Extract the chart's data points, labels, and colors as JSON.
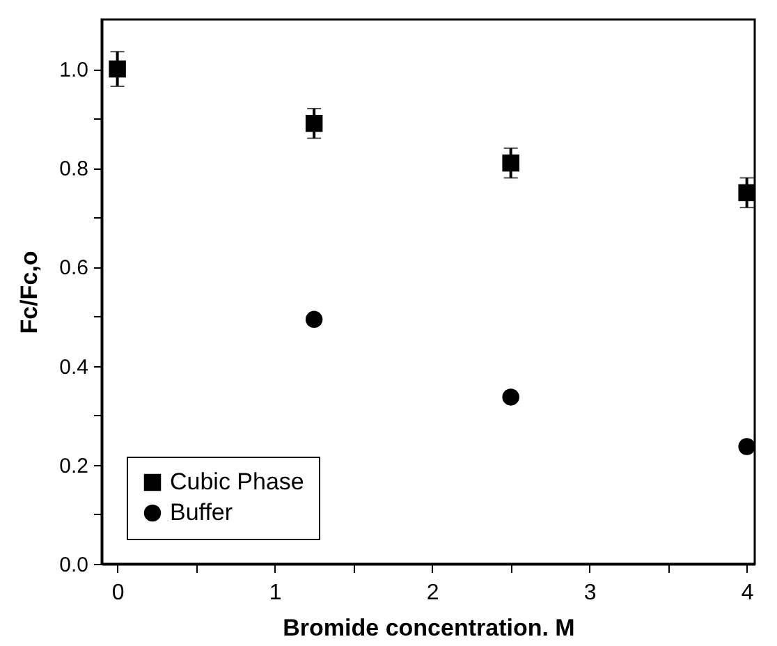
{
  "chart_data": {
    "type": "scatter",
    "xlabel": "Bromide concentration. M",
    "ylabel": "Fc/Fc,o",
    "x": [
      0,
      1.25,
      2.5,
      4
    ],
    "series": [
      {
        "name": "Cubic Phase",
        "color": "#000000",
        "marker": "square",
        "values": [
          1.0,
          0.89,
          0.81,
          0.75
        ],
        "errors": [
          0.035,
          0.03,
          0.03,
          0.03
        ]
      },
      {
        "name": "Buffer",
        "color": "#000000",
        "marker": "circle",
        "values": [
          null,
          0.494,
          0.337,
          0.237
        ]
      }
    ],
    "xlim": [
      -0.1,
      4.05
    ],
    "xticks": [
      0,
      {
        "value": 0.5,
        "label": null
      },
      1,
      {
        "value": 1.5,
        "label": null
      },
      2,
      {
        "value": 2.5,
        "label": null
      },
      3,
      {
        "value": 3.5,
        "label": null
      },
      4
    ],
    "ylim": [
      0,
      1.1
    ],
    "yticks": [
      {
        "value": 0,
        "label": "0.0"
      },
      {
        "value": 0.1,
        "label": null
      },
      {
        "value": 0.2,
        "label": "0.2"
      },
      {
        "value": 0.3,
        "label": null
      },
      {
        "value": 0.4,
        "label": "0.4"
      },
      {
        "value": 0.5,
        "label": null
      },
      {
        "value": 0.6,
        "label": "0.6"
      },
      {
        "value": 0.7,
        "label": null
      },
      {
        "value": 0.8,
        "label": "0.8"
      },
      {
        "value": 0.9,
        "label": null
      },
      {
        "value": 1.0,
        "label": "1.0"
      }
    ],
    "legend": "bottom left",
    "grid": false
  }
}
